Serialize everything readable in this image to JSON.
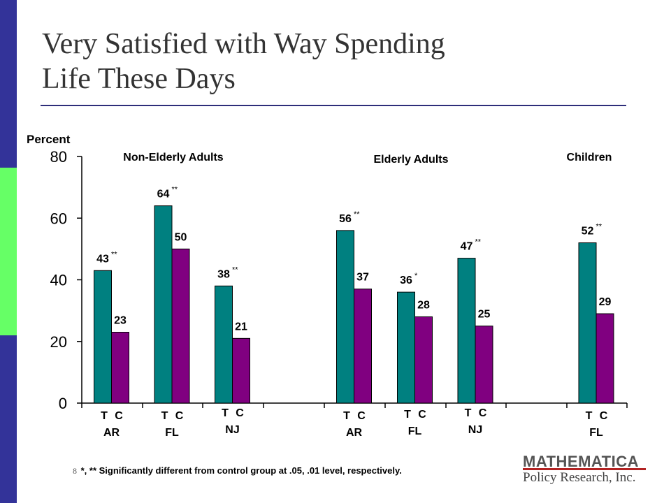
{
  "slide": {
    "title_line1": "Very Satisfied with Way Spending",
    "title_line2": "Life These Days",
    "slide_number": "8",
    "footnote": "*, ** Significantly different from control group at  .05, .01 level, respectively.",
    "logo_brand": "MATHEMATICA",
    "logo_sub": "Policy Research, Inc."
  },
  "colors": {
    "treatment": "#008080",
    "control": "#800080",
    "sidebar_blue": "#333399",
    "sidebar_green": "#66ff66",
    "logo_accent": "#b22222"
  },
  "chart_data": {
    "type": "bar",
    "ylabel": "Percent",
    "ylim": [
      0,
      80
    ],
    "yticks": [
      0,
      20,
      40,
      60,
      80
    ],
    "grid": false,
    "series_labels": [
      "T",
      "C"
    ],
    "groups": [
      {
        "name": "Non-Elderly Adults",
        "sites": [
          {
            "site": "AR",
            "T": 43,
            "C": 23,
            "T_sig": "**"
          },
          {
            "site": "FL",
            "T": 64,
            "C": 50,
            "T_sig": "**"
          },
          {
            "site": "NJ",
            "T": 38,
            "C": 21,
            "T_sig": "**"
          }
        ]
      },
      {
        "name": "Elderly Adults",
        "sites": [
          {
            "site": "AR",
            "T": 56,
            "C": 37,
            "T_sig": "**"
          },
          {
            "site": "FL",
            "T": 36,
            "C": 28,
            "T_sig": "*"
          },
          {
            "site": "NJ",
            "T": 47,
            "C": 25,
            "T_sig": "**"
          }
        ]
      },
      {
        "name": "Children",
        "sites": [
          {
            "site": "FL",
            "T": 52,
            "C": 29,
            "T_sig": "**"
          }
        ]
      }
    ]
  }
}
